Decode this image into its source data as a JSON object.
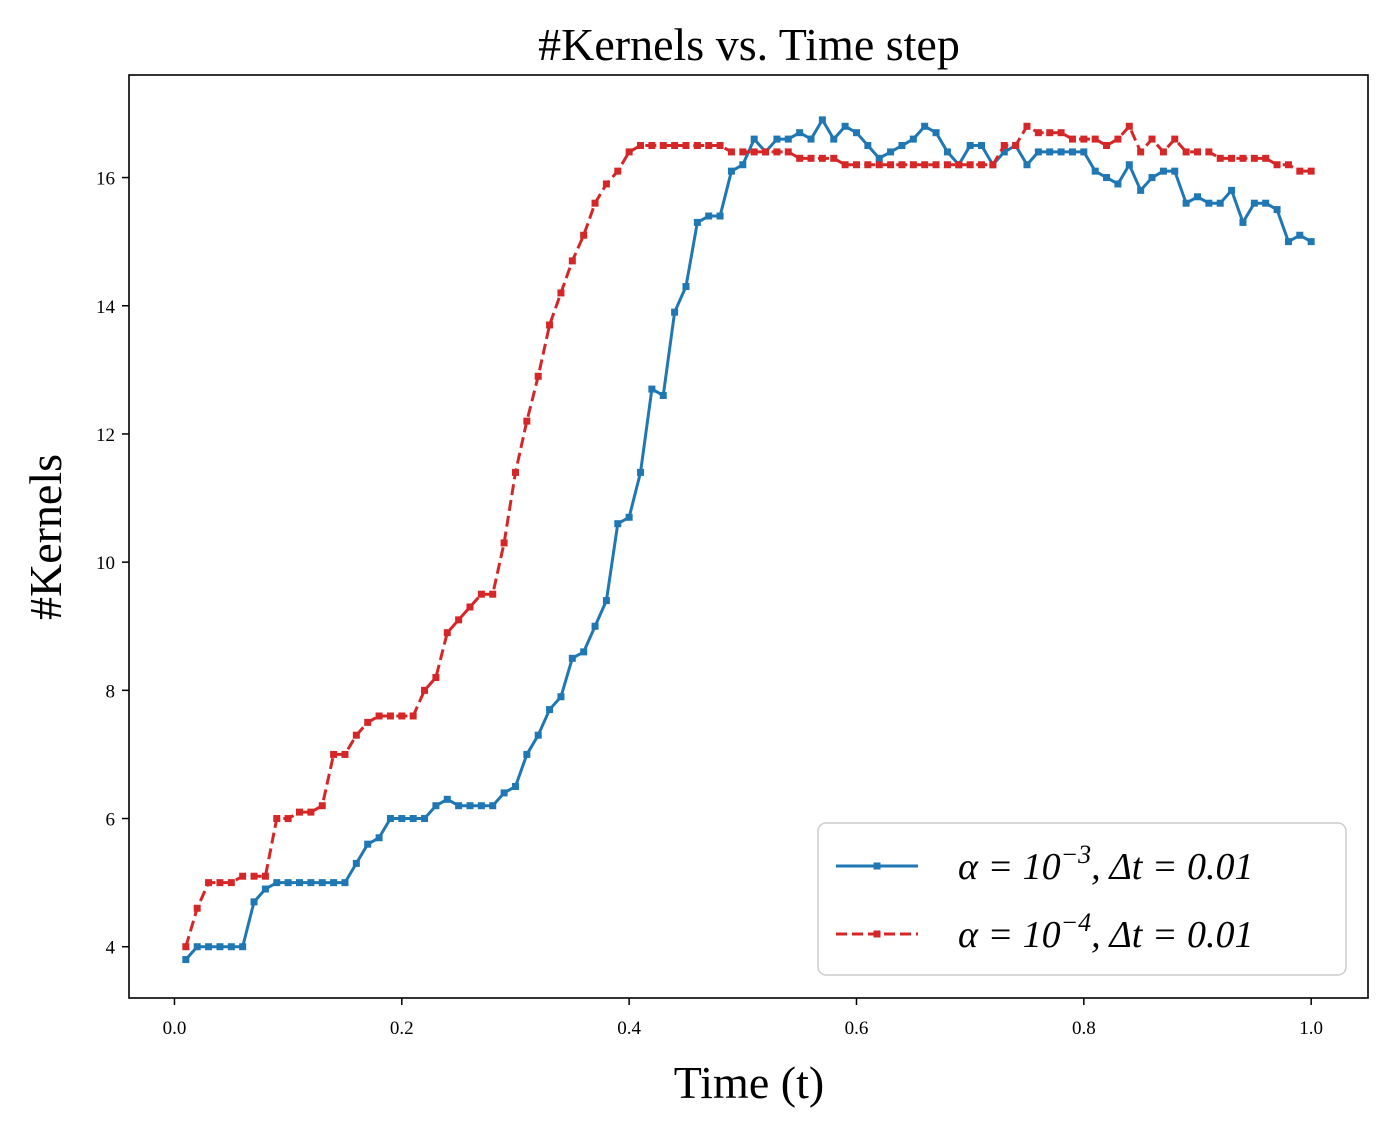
{
  "chart_data": {
    "type": "line",
    "title": "#Kernels vs. Time step",
    "xlabel": "Time (t)",
    "ylabel": "#Kernels",
    "xlim": [
      -0.04,
      1.05
    ],
    "ylim": [
      3.2,
      17.6
    ],
    "xticks": [
      0.0,
      0.2,
      0.4,
      0.6,
      0.8,
      1.0
    ],
    "xtick_labels": [
      "0.0",
      "0.2",
      "0.4",
      "0.6",
      "0.8",
      "1.0"
    ],
    "yticks": [
      4,
      6,
      8,
      10,
      12,
      14,
      16
    ],
    "ytick_labels": [
      "4",
      "6",
      "8",
      "10",
      "12",
      "14",
      "16"
    ],
    "grid": false,
    "legend_position": "bottom-right",
    "x": [
      0.01,
      0.02,
      0.03,
      0.04,
      0.05,
      0.06,
      0.07,
      0.08,
      0.09,
      0.1,
      0.11,
      0.12,
      0.13,
      0.14,
      0.15,
      0.16,
      0.17,
      0.18,
      0.19,
      0.2,
      0.21,
      0.22,
      0.23,
      0.24,
      0.25,
      0.26,
      0.27,
      0.28,
      0.29,
      0.3,
      0.31,
      0.32,
      0.33,
      0.34,
      0.35,
      0.36,
      0.37,
      0.38,
      0.39,
      0.4,
      0.41,
      0.42,
      0.43,
      0.44,
      0.45,
      0.46,
      0.47,
      0.48,
      0.49,
      0.5,
      0.51,
      0.52,
      0.53,
      0.54,
      0.55,
      0.56,
      0.57,
      0.58,
      0.59,
      0.6,
      0.61,
      0.62,
      0.63,
      0.64,
      0.65,
      0.66,
      0.67,
      0.68,
      0.69,
      0.7,
      0.71,
      0.72,
      0.73,
      0.74,
      0.75,
      0.76,
      0.77,
      0.78,
      0.79,
      0.8,
      0.81,
      0.82,
      0.83,
      0.84,
      0.85,
      0.86,
      0.87,
      0.88,
      0.89,
      0.9,
      0.91,
      0.92,
      0.93,
      0.94,
      0.95,
      0.96,
      0.97,
      0.98,
      0.99,
      1.0
    ],
    "series": [
      {
        "name": "α = 10⁻³, Δt = 0.01",
        "label_main": "α = 10",
        "label_exp": "−3",
        "label_tail": ", Δt = 0.01",
        "color": "#1f77b4",
        "linestyle": "solid",
        "values": [
          3.8,
          4.0,
          4.0,
          4.0,
          4.0,
          4.0,
          4.7,
          4.9,
          5.0,
          5.0,
          5.0,
          5.0,
          5.0,
          5.0,
          5.0,
          5.3,
          5.6,
          5.7,
          6.0,
          6.0,
          6.0,
          6.0,
          6.2,
          6.3,
          6.2,
          6.2,
          6.2,
          6.2,
          6.4,
          6.5,
          7.0,
          7.3,
          7.7,
          7.9,
          8.5,
          8.6,
          9.0,
          9.4,
          10.6,
          10.7,
          11.4,
          12.7,
          12.6,
          13.9,
          14.3,
          15.3,
          15.4,
          15.4,
          16.1,
          16.2,
          16.6,
          16.4,
          16.6,
          16.6,
          16.7,
          16.6,
          16.9,
          16.6,
          16.8,
          16.7,
          16.5,
          16.3,
          16.4,
          16.5,
          16.6,
          16.8,
          16.7,
          16.4,
          16.2,
          16.5,
          16.5,
          16.2,
          16.4,
          16.5,
          16.2,
          16.4,
          16.4,
          16.4,
          16.4,
          16.4,
          16.1,
          16.0,
          15.9,
          16.2,
          15.8,
          16.0,
          16.1,
          16.1,
          15.6,
          15.7,
          15.6,
          15.6,
          15.8,
          15.3,
          15.6,
          15.6,
          15.5,
          15.0,
          15.1,
          15.0
        ]
      },
      {
        "name": "α = 10⁻⁴, Δt = 0.01",
        "label_main": "α = 10",
        "label_exp": "−4",
        "label_tail": ", Δt = 0.01",
        "color": "#d62728",
        "linestyle": "dashed",
        "values": [
          4.0,
          4.6,
          5.0,
          5.0,
          5.0,
          5.1,
          5.1,
          5.1,
          6.0,
          6.0,
          6.1,
          6.1,
          6.2,
          7.0,
          7.0,
          7.3,
          7.5,
          7.6,
          7.6,
          7.6,
          7.6,
          8.0,
          8.2,
          8.9,
          9.1,
          9.3,
          9.5,
          9.5,
          10.3,
          11.4,
          12.2,
          12.9,
          13.7,
          14.2,
          14.7,
          15.1,
          15.6,
          15.9,
          16.1,
          16.4,
          16.5,
          16.5,
          16.5,
          16.5,
          16.5,
          16.5,
          16.5,
          16.5,
          16.4,
          16.4,
          16.4,
          16.4,
          16.4,
          16.4,
          16.3,
          16.3,
          16.3,
          16.3,
          16.2,
          16.2,
          16.2,
          16.2,
          16.2,
          16.2,
          16.2,
          16.2,
          16.2,
          16.2,
          16.2,
          16.2,
          16.2,
          16.2,
          16.5,
          16.5,
          16.8,
          16.7,
          16.7,
          16.7,
          16.6,
          16.6,
          16.6,
          16.5,
          16.6,
          16.8,
          16.4,
          16.6,
          16.4,
          16.6,
          16.4,
          16.4,
          16.4,
          16.3,
          16.3,
          16.3,
          16.3,
          16.3,
          16.2,
          16.2,
          16.1,
          16.1
        ]
      }
    ]
  }
}
